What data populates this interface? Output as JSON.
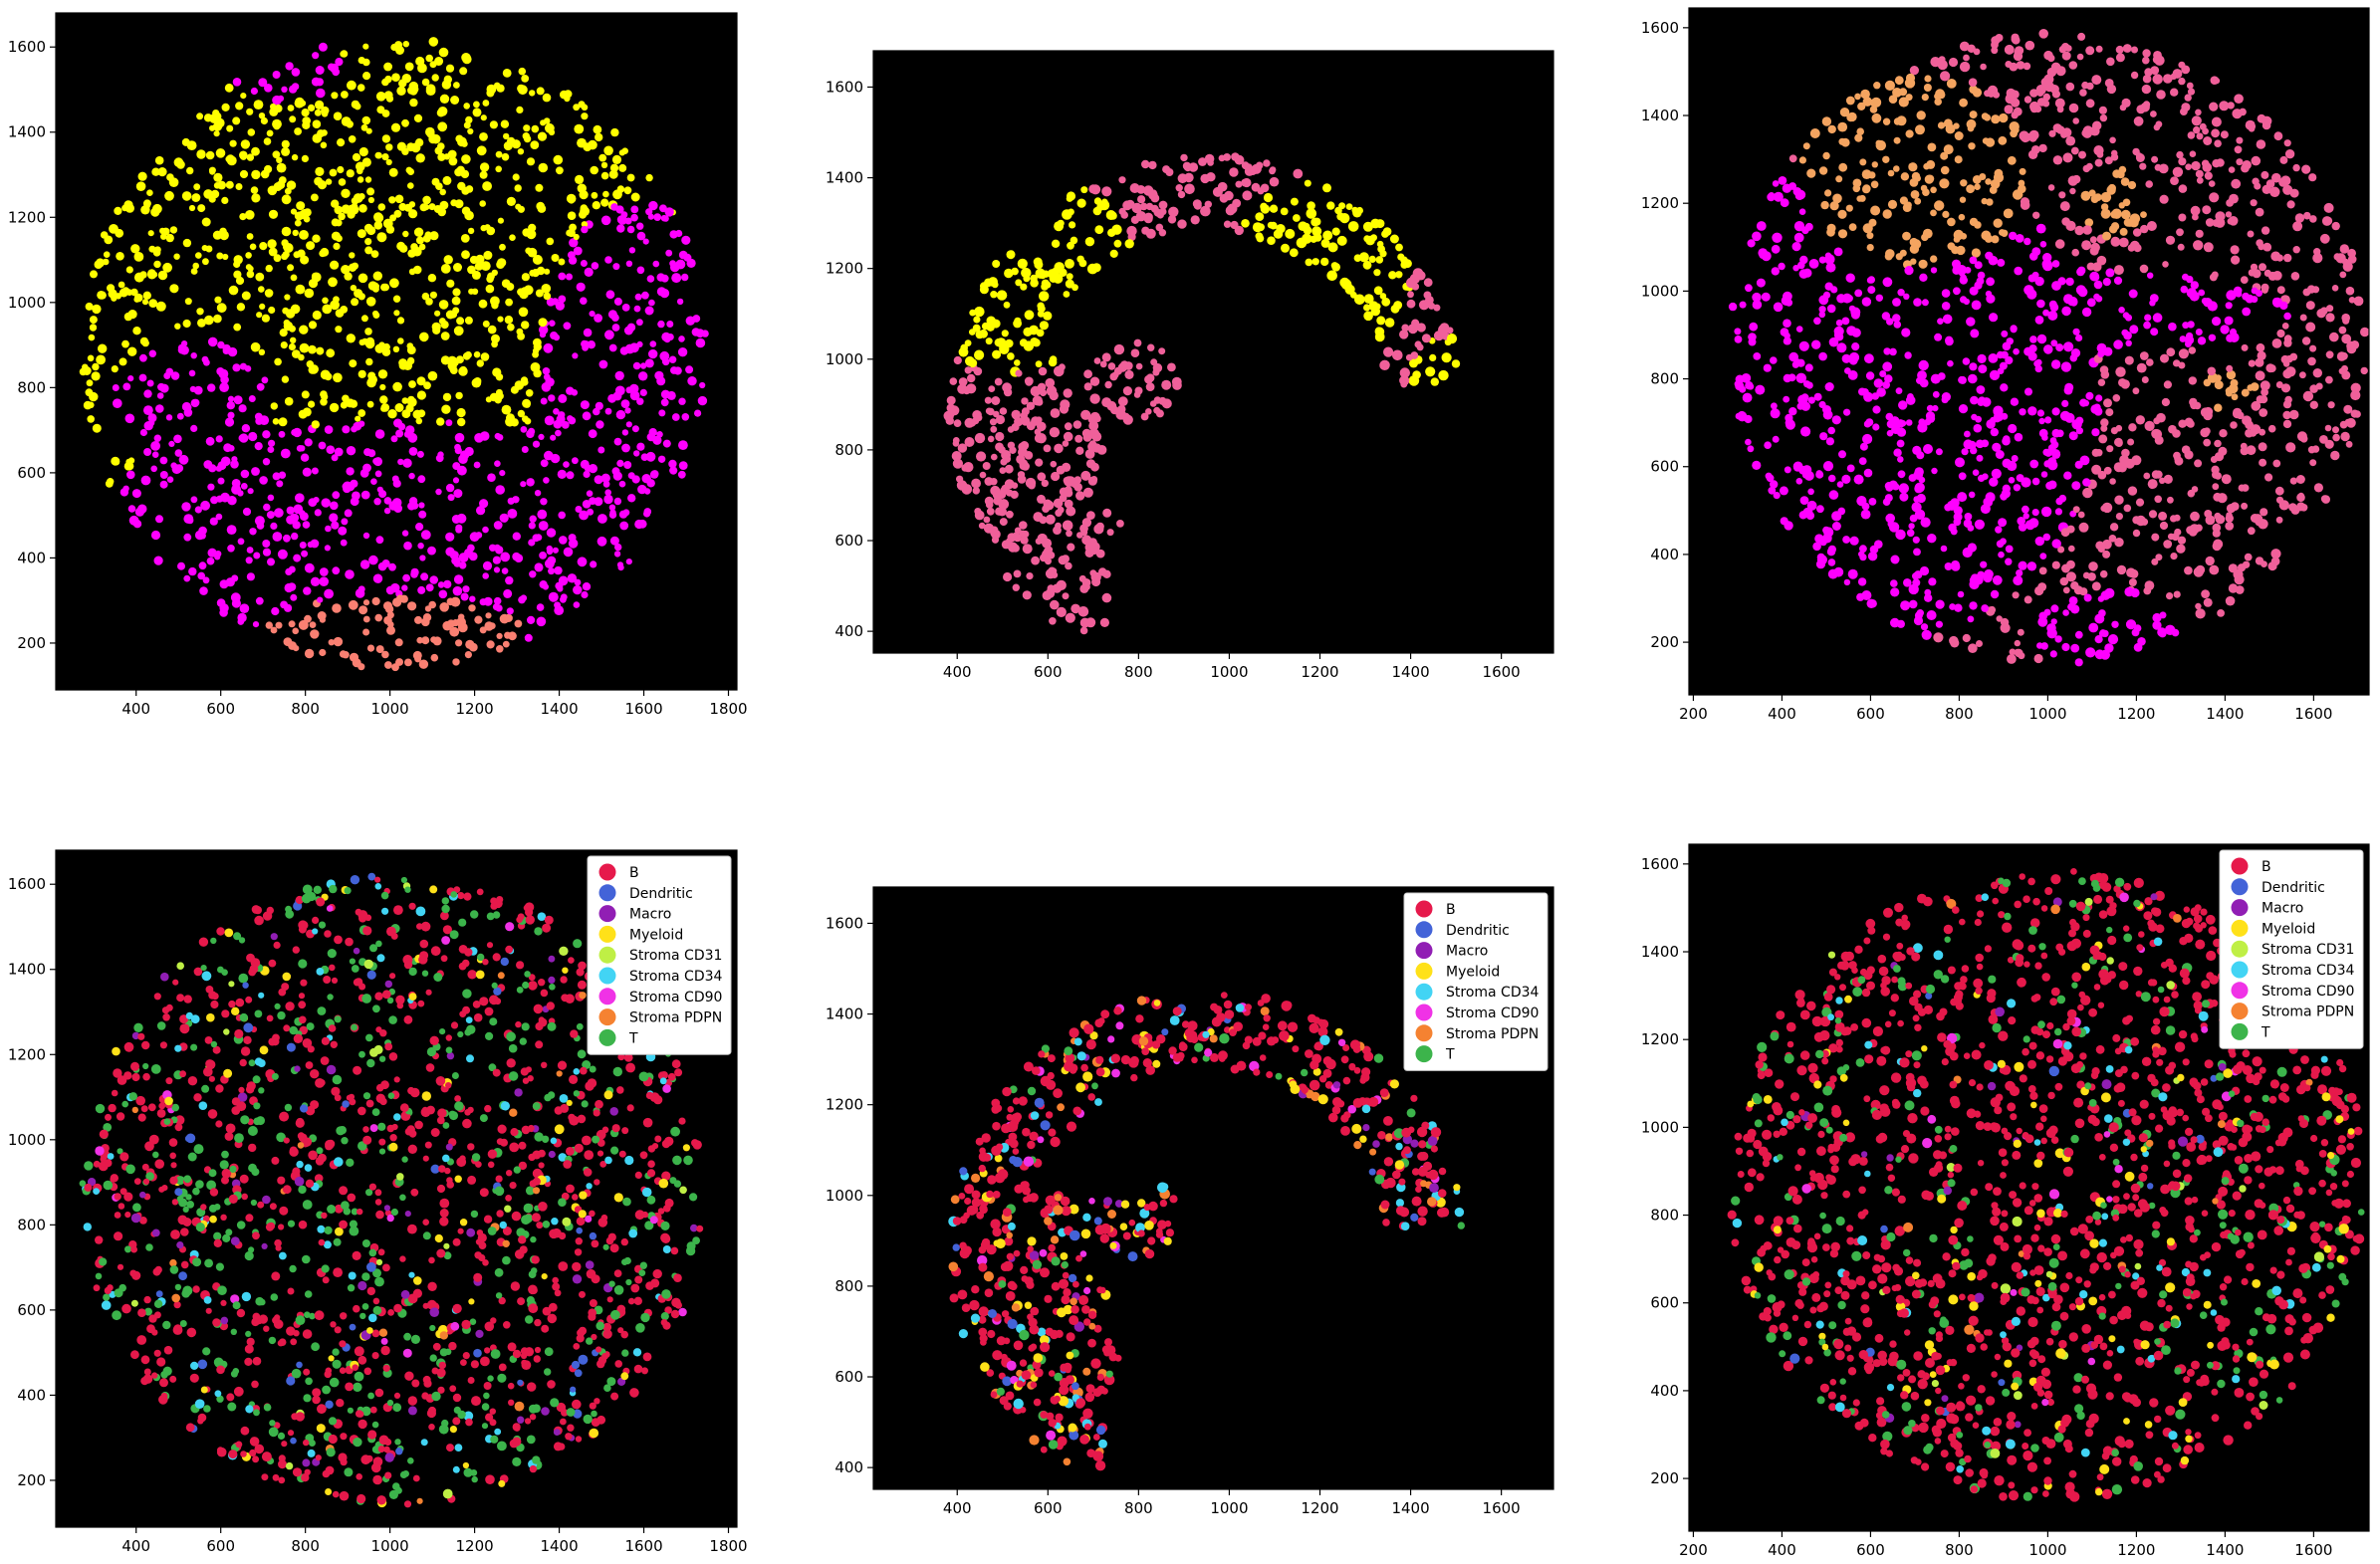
{
  "chart_data": [
    {
      "type": "scatter",
      "title": "",
      "xlabel": "",
      "ylabel": "",
      "xlim": [
        210,
        1820
      ],
      "ylim": [
        90,
        1680
      ],
      "xticks": [
        400,
        600,
        800,
        1000,
        1200,
        1400,
        1600,
        1800
      ],
      "yticks": [
        200,
        400,
        600,
        800,
        1000,
        1200,
        1400,
        1600
      ],
      "background": "#000000",
      "tissue": {
        "shape": "disk",
        "cx": 1010,
        "cy": 880,
        "r": 740
      },
      "regions": [
        {
          "color": "#ffff00",
          "cx": 780,
          "cy": 1180,
          "rx": 560,
          "ry": 430
        },
        {
          "color": "#ffff00",
          "cx": 1390,
          "cy": 1400,
          "rx": 300,
          "ry": 200
        },
        {
          "color": "#ffff00",
          "cx": 1060,
          "cy": 720,
          "rx": 240,
          "ry": 240
        },
        {
          "color": "#ff00ff",
          "cx": 1050,
          "cy": 420,
          "rx": 820,
          "ry": 300
        },
        {
          "color": "#ff00ff",
          "cx": 1580,
          "cy": 820,
          "rx": 230,
          "ry": 420
        },
        {
          "color": "#ff00ff",
          "cx": 530,
          "cy": 760,
          "rx": 190,
          "ry": 160
        },
        {
          "color": "#ff00ff",
          "cx": 750,
          "cy": 1550,
          "rx": 150,
          "ry": 80
        },
        {
          "color": "#fa8072",
          "cx": 1000,
          "cy": 220,
          "rx": 320,
          "ry": 90
        }
      ],
      "base_color": "#ffff00",
      "point_count": 1700,
      "legend": null
    },
    {
      "type": "scatter",
      "title": "",
      "xlabel": "",
      "ylabel": "",
      "xlim": [
        215,
        1715
      ],
      "ylim": [
        352,
        1680
      ],
      "xticks": [
        400,
        600,
        800,
        1000,
        1200,
        1400,
        1600
      ],
      "yticks": [
        400,
        600,
        800,
        1000,
        1200,
        1400,
        1600
      ],
      "background": "#000000",
      "tissue": {
        "shape": "arc",
        "cx": 950,
        "cy": 880,
        "r_outer": 570,
        "r_inner": 400,
        "y_min": 930,
        "left_arm": {
          "x_min": 300,
          "x_max": 730,
          "y_min": 400,
          "y_max": 1000
        },
        "blobs": [
          {
            "cx": 800,
            "cy": 950,
            "rx": 90,
            "ry": 90
          },
          {
            "cx": 700,
            "cy": 640,
            "rx": 60,
            "ry": 60
          }
        ]
      },
      "regions": [
        {
          "color": "#ffff00",
          "cx": 530,
          "cy": 1200,
          "rx": 260,
          "ry": 230
        },
        {
          "color": "#ffff00",
          "cx": 1200,
          "cy": 1180,
          "rx": 200,
          "ry": 220
        },
        {
          "color": "#ffff00",
          "cx": 1470,
          "cy": 960,
          "rx": 70,
          "ry": 90
        }
      ],
      "base_color": "#f0609a",
      "point_count": 700,
      "legend": null
    },
    {
      "type": "scatter",
      "title": "",
      "xlabel": "",
      "ylabel": "",
      "xlim": [
        190,
        1725
      ],
      "ylim": [
        80,
        1645
      ],
      "xticks": [
        200,
        400,
        600,
        800,
        1000,
        1200,
        1400,
        1600
      ],
      "yticks": [
        200,
        400,
        600,
        800,
        1000,
        1200,
        1400,
        1600
      ],
      "background": "#000000",
      "tissue": {
        "shape": "disk",
        "cx": 1000,
        "cy": 870,
        "r": 720
      },
      "regions": [
        {
          "color": "#ff00ff",
          "cx": 620,
          "cy": 760,
          "rx": 500,
          "ry": 560
        },
        {
          "color": "#ff00ff",
          "cx": 1000,
          "cy": 950,
          "rx": 560,
          "ry": 100
        },
        {
          "color": "#ff00ff",
          "cx": 1150,
          "cy": 220,
          "rx": 200,
          "ry": 100
        },
        {
          "color": "#f4a460",
          "cx": 700,
          "cy": 1270,
          "rx": 260,
          "ry": 220
        },
        {
          "color": "#f4a460",
          "cx": 1150,
          "cy": 1200,
          "rx": 90,
          "ry": 80
        },
        {
          "color": "#f4a460",
          "cx": 1400,
          "cy": 770,
          "rx": 70,
          "ry": 50
        }
      ],
      "base_color": "#f0609a",
      "point_count": 1700,
      "legend": null
    },
    {
      "type": "scatter",
      "title": "",
      "xlabel": "",
      "ylabel": "",
      "xlim": [
        210,
        1820
      ],
      "ylim": [
        90,
        1680
      ],
      "xticks": [
        400,
        600,
        800,
        1000,
        1200,
        1400,
        1600,
        1800
      ],
      "yticks": [
        200,
        400,
        600,
        800,
        1000,
        1200,
        1400,
        1600
      ],
      "background": "#000000",
      "tissue": {
        "shape": "disk",
        "cx": 1010,
        "cy": 880,
        "r": 740
      },
      "categories": [
        {
          "name": "B",
          "color": "#e6194b",
          "weight": 55
        },
        {
          "name": "Dendritic",
          "color": "#4363d8",
          "weight": 2
        },
        {
          "name": "Macro",
          "color": "#911eb4",
          "weight": 3
        },
        {
          "name": "Myeloid",
          "color": "#ffe119",
          "weight": 4
        },
        {
          "name": "Stroma CD31",
          "color": "#bfef45",
          "weight": 1
        },
        {
          "name": "Stroma CD34",
          "color": "#42d4f4",
          "weight": 6
        },
        {
          "name": "Stroma CD90",
          "color": "#f032e6",
          "weight": 1
        },
        {
          "name": "Stroma PDPN",
          "color": "#f58231",
          "weight": 1
        },
        {
          "name": "T",
          "color": "#3cb44b",
          "weight": 27
        }
      ],
      "point_count": 1700,
      "legend": "top-right"
    },
    {
      "type": "scatter",
      "title": "",
      "xlabel": "",
      "ylabel": "",
      "xlim": [
        215,
        1715
      ],
      "ylim": [
        352,
        1680
      ],
      "xticks": [
        400,
        600,
        800,
        1000,
        1200,
        1400,
        1600
      ],
      "yticks": [
        400,
        600,
        800,
        1000,
        1200,
        1400,
        1600
      ],
      "background": "#000000",
      "tissue": {
        "shape": "arc",
        "cx": 950,
        "cy": 880,
        "r_outer": 570,
        "r_inner": 400,
        "y_min": 930,
        "left_arm": {
          "x_min": 300,
          "x_max": 730,
          "y_min": 400,
          "y_max": 1000
        },
        "blobs": [
          {
            "cx": 800,
            "cy": 950,
            "rx": 90,
            "ry": 90
          },
          {
            "cx": 700,
            "cy": 640,
            "rx": 60,
            "ry": 60
          }
        ]
      },
      "categories": [
        {
          "name": "B",
          "color": "#e6194b",
          "weight": 62
        },
        {
          "name": "Dendritic",
          "color": "#4363d8",
          "weight": 3
        },
        {
          "name": "Macro",
          "color": "#911eb4",
          "weight": 3
        },
        {
          "name": "Myeloid",
          "color": "#ffe119",
          "weight": 9
        },
        {
          "name": "Stroma CD34",
          "color": "#42d4f4",
          "weight": 6
        },
        {
          "name": "Stroma CD90",
          "color": "#f032e6",
          "weight": 5
        },
        {
          "name": "Stroma PDPN",
          "color": "#f58231",
          "weight": 7
        },
        {
          "name": "T",
          "color": "#3cb44b",
          "weight": 5
        }
      ],
      "point_count": 700,
      "legend": "top-right"
    },
    {
      "type": "scatter",
      "title": "",
      "xlabel": "",
      "ylabel": "",
      "xlim": [
        190,
        1725
      ],
      "ylim": [
        80,
        1645
      ],
      "xticks": [
        200,
        400,
        600,
        800,
        1000,
        1200,
        1400,
        1600
      ],
      "yticks": [
        200,
        400,
        600,
        800,
        1000,
        1200,
        1400,
        1600
      ],
      "background": "#000000",
      "tissue": {
        "shape": "disk",
        "cx": 1000,
        "cy": 870,
        "r": 720
      },
      "categories": [
        {
          "name": "B",
          "color": "#e6194b",
          "weight": 72
        },
        {
          "name": "Dendritic",
          "color": "#4363d8",
          "weight": 1
        },
        {
          "name": "Macro",
          "color": "#911eb4",
          "weight": 1
        },
        {
          "name": "Myeloid",
          "color": "#ffe119",
          "weight": 5
        },
        {
          "name": "Stroma CD31",
          "color": "#bfef45",
          "weight": 1
        },
        {
          "name": "Stroma CD34",
          "color": "#42d4f4",
          "weight": 4
        },
        {
          "name": "Stroma CD90",
          "color": "#f032e6",
          "weight": 1
        },
        {
          "name": "Stroma PDPN",
          "color": "#f58231",
          "weight": 1
        },
        {
          "name": "T",
          "color": "#3cb44b",
          "weight": 14
        }
      ],
      "point_count": 1700,
      "legend": "top-right"
    }
  ]
}
